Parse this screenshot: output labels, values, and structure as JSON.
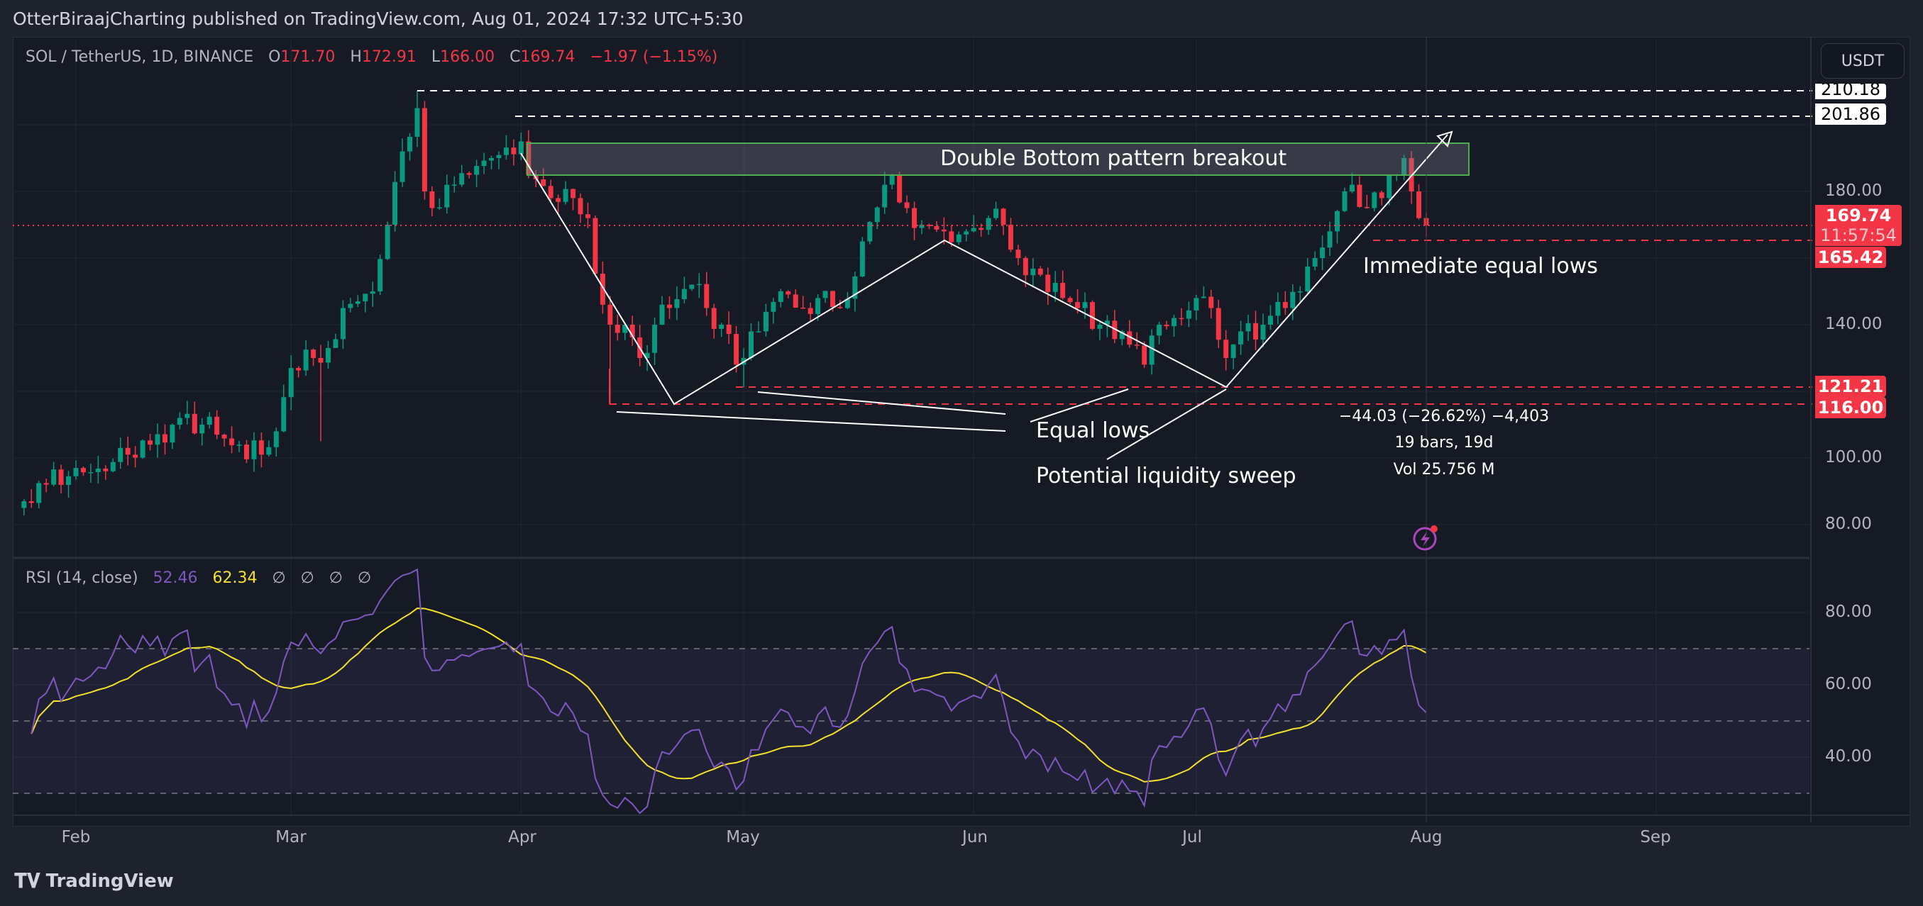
{
  "header": {
    "published": "OtterBiraajCharting published on TradingView.com, Aug 01, 2024 17:32 UTC+5:30"
  },
  "legend": {
    "symbol": "SOL / TetherUS, 1D, BINANCE",
    "o_label": "O",
    "o": "171.70",
    "h_label": "H",
    "h": "172.91",
    "l_label": "L",
    "l": "166.00",
    "c_label": "C",
    "c": "169.74",
    "change": "−1.97 (−1.15%)"
  },
  "currency_button": "USDT",
  "price_axis": {
    "ticks": [
      "180.00",
      "140.00",
      "100.00",
      "80.00"
    ]
  },
  "price_labels": {
    "p1": "210.18",
    "p2": "201.86",
    "last": "169.74",
    "countdown": "11:57:54",
    "p3": "165.42",
    "p4": "121.21",
    "p5": "116.00"
  },
  "annotations": {
    "breakout": "Double Bottom pattern breakout",
    "immediate": "Immediate equal lows",
    "equal_lows": "Equal lows",
    "sweep": "Potential liquidity sweep"
  },
  "measure": {
    "change": "−44.03 (−26.62%) −4,403",
    "bars": "19 bars, 19d",
    "volume": "Vol 25.756 M"
  },
  "rsi": {
    "title": "RSI (14, close)",
    "value": "52.46",
    "ma": "62.34",
    "extras": [
      "∅",
      "∅",
      "∅",
      "∅"
    ],
    "axis": [
      "80.00",
      "60.00",
      "40.00"
    ],
    "upper": 70,
    "middle": 50,
    "lower": 30
  },
  "time_axis": [
    "Feb",
    "Mar",
    "Apr",
    "May",
    "Jun",
    "Jul",
    "Aug",
    "Sep"
  ],
  "footer": {
    "brand": "TradingView"
  },
  "colors": {
    "up": "#089981",
    "down": "#f23645",
    "rsi": "#7e57c2",
    "rsi_ma": "#f5e02a"
  },
  "chart_data": {
    "type": "candlestick",
    "title": "SOL / TetherUS, 1D, BINANCE",
    "ylim": [
      72,
      214
    ],
    "close_anchors": [
      [
        "01-25",
        87
      ],
      [
        "01-28",
        92
      ],
      [
        "02-01",
        97
      ],
      [
        "02-05",
        96
      ],
      [
        "02-08",
        101
      ],
      [
        "02-11",
        104
      ],
      [
        "02-15",
        112
      ],
      [
        "02-18",
        110
      ],
      [
        "02-20",
        107
      ],
      [
        "02-23",
        104
      ],
      [
        "02-26",
        101
      ],
      [
        "02-28",
        108
      ],
      [
        "03-01",
        127
      ],
      [
        "03-04",
        130
      ],
      [
        "03-06",
        133
      ],
      [
        "03-08",
        145
      ],
      [
        "03-10",
        147
      ],
      [
        "03-12",
        150
      ],
      [
        "03-14",
        170
      ],
      [
        "03-16",
        192
      ],
      [
        "03-18",
        205
      ],
      [
        "03-19",
        180
      ],
      [
        "03-20",
        175
      ],
      [
        "03-22",
        182
      ],
      [
        "03-25",
        185
      ],
      [
        "03-28",
        190
      ],
      [
        "04-01",
        195
      ],
      [
        "04-02",
        185
      ],
      [
        "04-05",
        178
      ],
      [
        "04-08",
        178
      ],
      [
        "04-10",
        172
      ],
      [
        "04-12",
        146
      ],
      [
        "04-13",
        140
      ],
      [
        "04-15",
        140
      ],
      [
        "04-17",
        130
      ],
      [
        "04-19",
        140
      ],
      [
        "04-21",
        145
      ],
      [
        "04-24",
        152
      ],
      [
        "04-26",
        145
      ],
      [
        "04-28",
        140
      ],
      [
        "04-30",
        128
      ],
      [
        "05-01",
        130
      ],
      [
        "05-03",
        138
      ],
      [
        "05-06",
        150
      ],
      [
        "05-09",
        145
      ],
      [
        "05-11",
        148
      ],
      [
        "05-14",
        145
      ],
      [
        "05-17",
        165
      ],
      [
        "05-20",
        182
      ],
      [
        "05-21",
        185
      ],
      [
        "05-23",
        175
      ],
      [
        "05-25",
        170
      ],
      [
        "05-28",
        168
      ],
      [
        "05-31",
        168
      ],
      [
        "06-03",
        172
      ],
      [
        "06-05",
        170
      ],
      [
        "06-07",
        160
      ],
      [
        "06-10",
        155
      ],
      [
        "06-13",
        148
      ],
      [
        "06-15",
        145
      ],
      [
        "06-18",
        140
      ],
      [
        "06-21",
        138
      ],
      [
        "06-24",
        128
      ],
      [
        "06-26",
        140
      ],
      [
        "06-28",
        142
      ],
      [
        "07-01",
        148
      ],
      [
        "07-03",
        145
      ],
      [
        "07-05",
        130
      ],
      [
        "07-07",
        138
      ],
      [
        "07-10",
        140
      ],
      [
        "07-13",
        145
      ],
      [
        "07-15",
        150
      ],
      [
        "07-17",
        160
      ],
      [
        "07-19",
        168
      ],
      [
        "07-21",
        180
      ],
      [
        "07-22",
        182
      ],
      [
        "07-24",
        175
      ],
      [
        "07-26",
        178
      ],
      [
        "07-28",
        185
      ],
      [
        "07-29",
        190
      ],
      [
        "07-30",
        180
      ],
      [
        "07-31",
        172
      ],
      [
        "08-01",
        169.74
      ]
    ],
    "levels": [
      210.18,
      201.86,
      169.74,
      165.42,
      121.21,
      116.0
    ],
    "rsi_ylim": [
      24,
      92
    ]
  }
}
